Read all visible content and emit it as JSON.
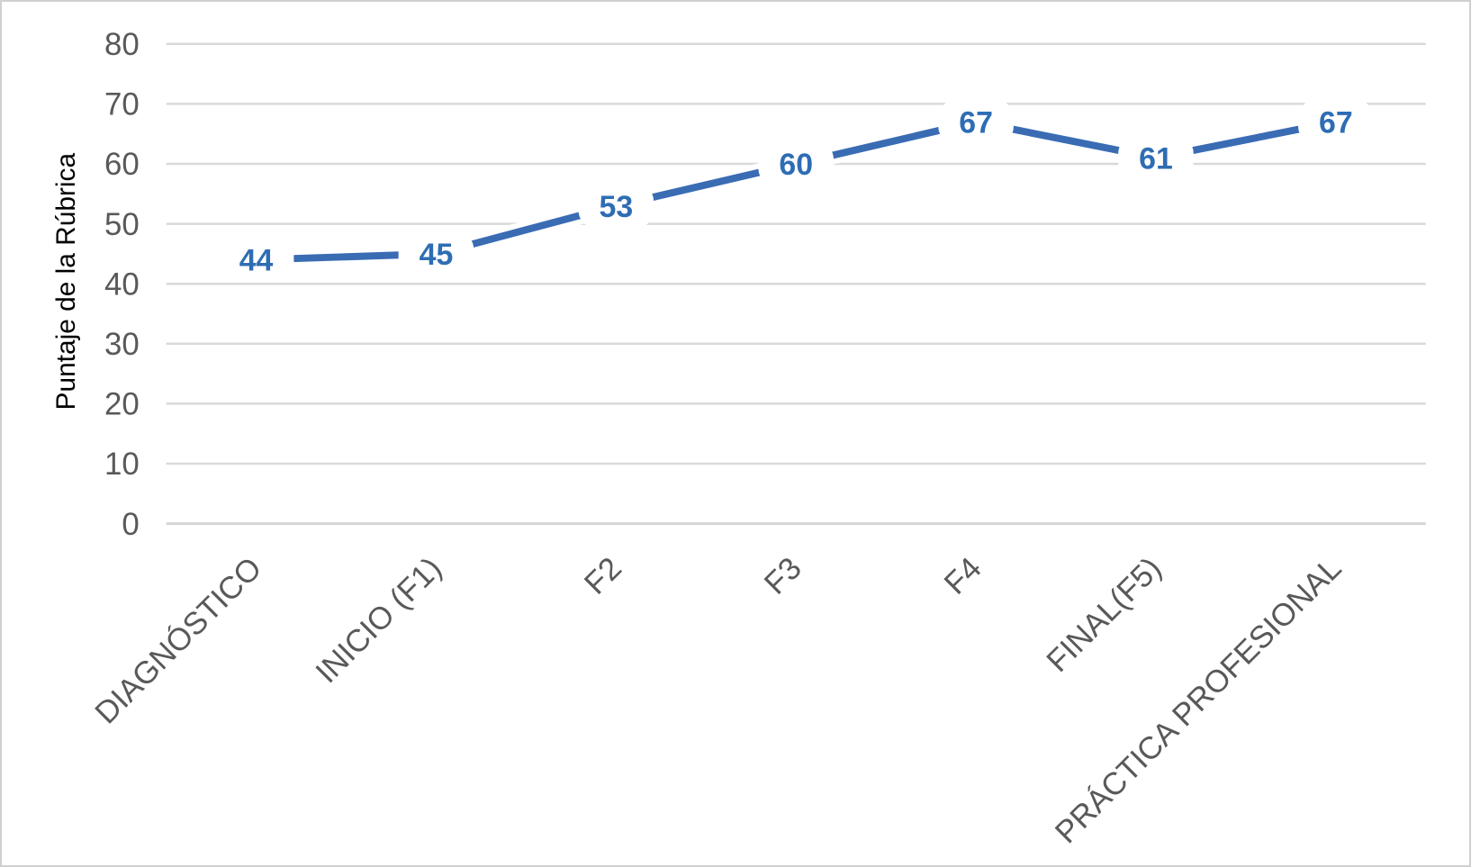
{
  "chart_data": {
    "type": "line",
    "categories": [
      "DIAGNÓSTICO",
      "INICIO (F1)",
      "F2",
      "F3",
      "F4",
      "FINAL(F5)",
      "PRÁCTICA PROFESIONAL"
    ],
    "values": [
      44,
      45,
      53,
      60,
      67,
      61,
      67
    ],
    "data_labels": [
      "44",
      "45",
      "53",
      "60",
      "67",
      "61",
      "67"
    ],
    "title": "",
    "xlabel": "",
    "ylabel": "Puntaje de la Rúbrica",
    "ylim": [
      0,
      80
    ],
    "yticks": [
      0,
      10,
      20,
      30,
      40,
      50,
      60,
      70,
      80
    ],
    "grid": "horizontal",
    "legend_position": "none",
    "colors": {
      "line": "#3A6CB4",
      "data_label": "#2E6DB4",
      "grid_line": "#D9D9D9",
      "axis_line": "#D6D6D6",
      "axis_text": "#595959",
      "frame_border": "#D0D0D0",
      "background": "#FFFFFF",
      "label_halo": "#FFFFFF"
    }
  }
}
